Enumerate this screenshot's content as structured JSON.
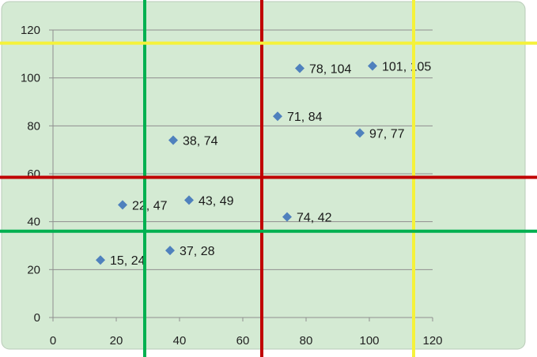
{
  "chart_data": {
    "type": "scatter",
    "title": "",
    "xlabel": "",
    "ylabel": "",
    "xlim": [
      0,
      120
    ],
    "ylim": [
      0,
      120
    ],
    "x_ticks": [
      0,
      20,
      40,
      60,
      80,
      100,
      120
    ],
    "y_ticks": [
      0,
      20,
      40,
      60,
      80,
      100,
      120
    ],
    "grid": "horizontal",
    "legend": "none",
    "series": [
      {
        "marker": "diamond",
        "color": "#4f81bd",
        "points": [
          {
            "x": 15,
            "y": 24,
            "label": "15, 24"
          },
          {
            "x": 22,
            "y": 47,
            "label": "22, 47"
          },
          {
            "x": 37,
            "y": 28,
            "label": "37, 28"
          },
          {
            "x": 38,
            "y": 74,
            "label": "38, 74"
          },
          {
            "x": 43,
            "y": 49,
            "label": "43, 49"
          },
          {
            "x": 71,
            "y": 84,
            "label": "71, 84"
          },
          {
            "x": 74,
            "y": 42,
            "label": "74, 42"
          },
          {
            "x": 78,
            "y": 104,
            "label": "78, 104"
          },
          {
            "x": 97,
            "y": 77,
            "label": "97, 77"
          },
          {
            "x": 101,
            "y": 105,
            "label": "101, 105"
          }
        ]
      }
    ],
    "reference_lines": [
      {
        "orientation": "vertical",
        "value": 29,
        "color": "#00b050"
      },
      {
        "orientation": "vertical",
        "value": 66,
        "color": "#c00000"
      },
      {
        "orientation": "vertical",
        "value": 114,
        "color": "#f5f23a"
      },
      {
        "orientation": "horizontal",
        "value": 36,
        "color": "#00b050"
      },
      {
        "orientation": "horizontal",
        "value": 58.5,
        "color": "#c00000"
      },
      {
        "orientation": "horizontal",
        "value": 114.5,
        "color": "#f5f23a"
      }
    ]
  },
  "colors": {
    "plot_background": "#d4ead3",
    "gridline": "#8f8f8f",
    "axis": "#8f8f8f"
  }
}
